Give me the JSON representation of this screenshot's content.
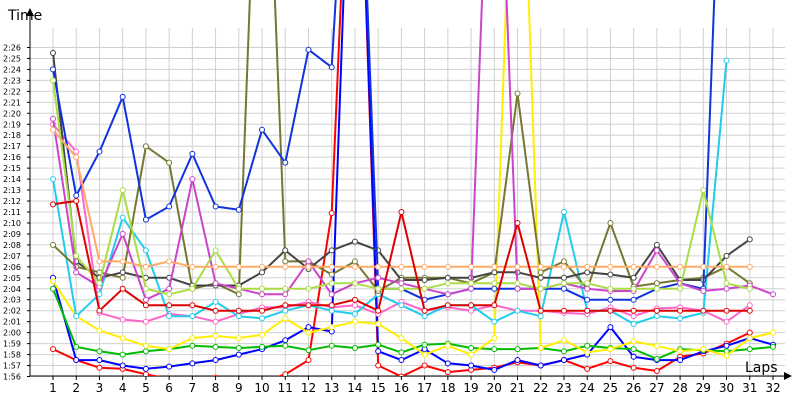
{
  "chart_data": {
    "type": "line",
    "title": "",
    "ylabel": "Time",
    "xlabel": "Laps",
    "x": [
      1,
      2,
      3,
      4,
      5,
      6,
      7,
      8,
      9,
      10,
      11,
      12,
      13,
      14,
      15,
      16,
      17,
      18,
      19,
      20,
      21,
      22,
      23,
      24,
      25,
      26,
      27,
      28,
      29,
      30,
      31,
      32
    ],
    "y_tick_labels": [
      "1:56",
      "1:57",
      "1:58",
      "1:59",
      "2:00",
      "2:01",
      "2:02",
      "2:03",
      "2:04",
      "2:05",
      "2:06",
      "2:07",
      "2:08",
      "2:09",
      "2:10",
      "2:11",
      "2:12",
      "2:13",
      "2:14",
      "2:15",
      "2:16",
      "2:17",
      "2:18",
      "2:19",
      "2:20",
      "2:21",
      "2:22",
      "2:23",
      "2:24",
      "2:25",
      "2:26"
    ],
    "ylim_seconds": [
      116,
      146
    ],
    "grid": true,
    "series": [
      {
        "color": "#ff0000",
        "values": [
          118.5,
          117.5,
          116.8,
          116.7,
          116.2,
          115.8,
          115.8,
          115.9,
          115.4,
          115.5,
          116.2,
          117.5,
          130.9,
          180,
          117.0,
          116.0,
          117.0,
          116.4,
          116.6,
          116.8,
          117.3,
          117.0,
          117.5,
          116.7,
          117.4,
          116.8,
          116.5,
          117.8,
          118.1,
          119.0,
          120.0,
          null
        ]
      },
      {
        "color": "#0000ff",
        "values": [
          125.0,
          117.5,
          117.5,
          117.0,
          116.7,
          116.9,
          117.2,
          117.5,
          118.0,
          118.5,
          119.3,
          120.5,
          120.1,
          180,
          118.3,
          117.5,
          118.5,
          117.2,
          117.0,
          116.6,
          117.5,
          117.0,
          117.5,
          118.0,
          120.5,
          117.8,
          117.5,
          117.5,
          118.3,
          118.8,
          119.5,
          118.9
        ]
      },
      {
        "color": "#00bb00",
        "values": [
          124.0,
          118.7,
          118.3,
          118.0,
          118.3,
          118.5,
          118.8,
          118.7,
          118.6,
          118.7,
          118.8,
          118.4,
          118.8,
          118.6,
          118.9,
          118.2,
          118.9,
          119.0,
          118.6,
          118.5,
          118.5,
          118.6,
          118.3,
          118.8,
          118.6,
          118.5,
          117.6,
          118.5,
          118.4,
          118.3,
          118.5,
          118.7
        ]
      },
      {
        "color": "#ffee00",
        "values": [
          124.7,
          121.5,
          120.2,
          119.5,
          118.8,
          118.5,
          119.5,
          119.7,
          119.5,
          119.8,
          121.3,
          120.0,
          120.5,
          121.0,
          120.8,
          119.5,
          118.0,
          118.8,
          118.0,
          119.5,
          180,
          118.6,
          119.3,
          118.2,
          118.5,
          119.2,
          118.8,
          118.3,
          118.5,
          117.9,
          119.5,
          120.0
        ]
      },
      {
        "color": "#ff66cc",
        "values": [
          139.0,
          136.5,
          121.8,
          121.2,
          121.0,
          121.7,
          121.5,
          121.0,
          121.7,
          122.3,
          122.3,
          122.8,
          122.3,
          122.5,
          121.7,
          122.8,
          122.0,
          122.3,
          122.0,
          122.5,
          122.0,
          122.0,
          121.8,
          121.7,
          122.3,
          121.5,
          122.2,
          122.3,
          122.0,
          121.0,
          122.5,
          null
        ]
      },
      {
        "color": "#22ccee",
        "values": [
          134.0,
          121.5,
          123.5,
          130.5,
          127.5,
          121.5,
          121.5,
          122.8,
          121.5,
          121.3,
          122.0,
          122.5,
          122.0,
          121.7,
          123.5,
          122.5,
          121.5,
          122.5,
          122.5,
          121.0,
          122.0,
          121.5,
          131.0,
          122.0,
          122.0,
          120.8,
          121.5,
          121.3,
          121.8,
          144.8,
          null,
          null
        ]
      },
      {
        "color": "#777733",
        "values": [
          128.0,
          126.0,
          125.5,
          125.0,
          137.0,
          135.5,
          124.0,
          124.5,
          123.5,
          180,
          126.5,
          126.5,
          125.3,
          126.5,
          123.8,
          125.0,
          125.0,
          125.0,
          124.5,
          125.5,
          141.8,
          125.5,
          126.5,
          124.0,
          130.0,
          124.2,
          124.5,
          124.8,
          125.0,
          126.0,
          124.5,
          null
        ]
      },
      {
        "color": "#444444",
        "values": [
          145.5,
          126.5,
          125.0,
          125.5,
          125.0,
          125.0,
          124.3,
          124.3,
          124.3,
          125.5,
          127.5,
          125.8,
          127.5,
          128.3,
          127.5,
          124.8,
          124.8,
          125.0,
          125.0,
          125.5,
          125.5,
          125.0,
          125.0,
          125.5,
          125.3,
          125.0,
          128.0,
          124.8,
          124.8,
          127.0,
          128.5,
          null
        ]
      },
      {
        "color": "#1133dd",
        "values": [
          144.0,
          132.5,
          136.5,
          141.5,
          130.3,
          131.5,
          136.3,
          131.5,
          131.2,
          138.5,
          135.5,
          145.8,
          144.2,
          180,
          124.0,
          124.0,
          123.0,
          123.5,
          124.0,
          124.0,
          124.0,
          124.0,
          124.0,
          123.0,
          123.0,
          123.0,
          124.0,
          124.5,
          124.0,
          180,
          null,
          null
        ]
      },
      {
        "color": "#cc44cc",
        "values": [
          139.5,
          125.5,
          124.2,
          129.0,
          123.0,
          124.0,
          134.0,
          124.5,
          124.0,
          123.5,
          123.5,
          126.5,
          123.5,
          124.5,
          125.0,
          124.5,
          124.0,
          123.5,
          124.0,
          180,
          124.0,
          124.0,
          124.5,
          124.0,
          123.8,
          123.8,
          127.5,
          124.5,
          123.8,
          124.0,
          124.3,
          123.5
        ]
      },
      {
        "color": "#aadd44",
        "values": [
          143.0,
          127.0,
          124.5,
          133.0,
          124.0,
          123.5,
          124.0,
          127.5,
          124.0,
          124.0,
          124.0,
          124.0,
          124.5,
          124.5,
          124.0,
          124.0,
          124.0,
          124.5,
          124.5,
          124.5,
          124.5,
          124.0,
          124.5,
          124.5,
          124.0,
          124.0,
          124.0,
          124.0,
          133.0,
          124.5,
          124.0,
          null
        ]
      },
      {
        "color": "#ffaa66",
        "values": [
          138.5,
          136.0,
          126.5,
          126.5,
          126.0,
          126.5,
          126.0,
          126.0,
          126.0,
          126.0,
          126.0,
          126.0,
          126.0,
          126.0,
          126.0,
          126.0,
          126.0,
          126.0,
          126.0,
          126.0,
          126.0,
          126.0,
          126.0,
          126.0,
          126.0,
          126.0,
          126.0,
          126.0,
          126.0,
          126.0,
          126.0,
          null
        ]
      },
      {
        "color": "#dd0000",
        "values": [
          131.7,
          132.0,
          122.0,
          124.0,
          122.5,
          122.5,
          122.5,
          122.0,
          122.0,
          122.0,
          122.5,
          122.5,
          122.5,
          123.0,
          122.0,
          131.0,
          122.0,
          122.5,
          122.5,
          122.5,
          130.0,
          122.0,
          122.0,
          122.0,
          122.0,
          122.0,
          122.0,
          122.0,
          122.0,
          122.0,
          122.0,
          null
        ]
      }
    ]
  }
}
